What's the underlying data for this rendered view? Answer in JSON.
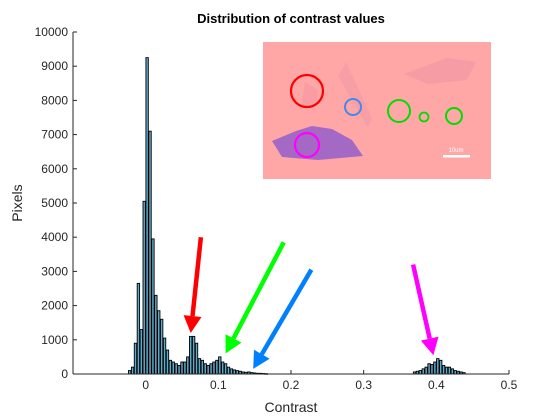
{
  "chart_data": {
    "type": "bar",
    "title": "Distribution of contrast values",
    "xlabel": "Contrast",
    "ylabel": "Pixels",
    "xlim": [
      -0.1,
      0.5
    ],
    "ylim": [
      0,
      10000
    ],
    "xticks": [
      0,
      0.1,
      0.2,
      0.3,
      0.4,
      0.5
    ],
    "xtick_labels": [
      "0",
      "0.1",
      "0.2",
      "0.3",
      "0.4",
      "0.5"
    ],
    "yticks": [
      0,
      1000,
      2000,
      3000,
      4000,
      5000,
      6000,
      7000,
      8000,
      9000,
      10000
    ],
    "ytick_labels": [
      "0",
      "1000",
      "2000",
      "3000",
      "4000",
      "5000",
      "6000",
      "7000",
      "8000",
      "9000",
      "10000"
    ],
    "grid": false,
    "bar_color": "#5fa9c9",
    "edge_color": "#000000",
    "bins": [
      {
        "x": -0.022,
        "y": 100
      },
      {
        "x": -0.018,
        "y": 200
      },
      {
        "x": -0.014,
        "y": 900
      },
      {
        "x": -0.01,
        "y": 2650
      },
      {
        "x": -0.006,
        "y": 1300
      },
      {
        "x": -0.002,
        "y": 5050
      },
      {
        "x": 0.002,
        "y": 9250
      },
      {
        "x": 0.006,
        "y": 7100
      },
      {
        "x": 0.01,
        "y": 3950
      },
      {
        "x": 0.014,
        "y": 2300
      },
      {
        "x": 0.018,
        "y": 1850
      },
      {
        "x": 0.022,
        "y": 1600
      },
      {
        "x": 0.026,
        "y": 1050
      },
      {
        "x": 0.03,
        "y": 700
      },
      {
        "x": 0.034,
        "y": 400
      },
      {
        "x": 0.038,
        "y": 350
      },
      {
        "x": 0.042,
        "y": 300
      },
      {
        "x": 0.046,
        "y": 250
      },
      {
        "x": 0.05,
        "y": 350
      },
      {
        "x": 0.054,
        "y": 350
      },
      {
        "x": 0.058,
        "y": 500
      },
      {
        "x": 0.062,
        "y": 1100
      },
      {
        "x": 0.066,
        "y": 1100
      },
      {
        "x": 0.07,
        "y": 900
      },
      {
        "x": 0.074,
        "y": 450
      },
      {
        "x": 0.078,
        "y": 400
      },
      {
        "x": 0.082,
        "y": 300
      },
      {
        "x": 0.086,
        "y": 250
      },
      {
        "x": 0.09,
        "y": 300
      },
      {
        "x": 0.094,
        "y": 350
      },
      {
        "x": 0.098,
        "y": 400
      },
      {
        "x": 0.102,
        "y": 500
      },
      {
        "x": 0.106,
        "y": 350
      },
      {
        "x": 0.11,
        "y": 300
      },
      {
        "x": 0.114,
        "y": 200
      },
      {
        "x": 0.118,
        "y": 150
      },
      {
        "x": 0.122,
        "y": 120
      },
      {
        "x": 0.126,
        "y": 100
      },
      {
        "x": 0.13,
        "y": 80
      },
      {
        "x": 0.134,
        "y": 60
      },
      {
        "x": 0.138,
        "y": 50
      },
      {
        "x": 0.142,
        "y": 60
      },
      {
        "x": 0.146,
        "y": 40
      },
      {
        "x": 0.15,
        "y": 30
      },
      {
        "x": 0.154,
        "y": 20
      },
      {
        "x": 0.158,
        "y": 20
      },
      {
        "x": 0.162,
        "y": 15
      },
      {
        "x": 0.166,
        "y": 10
      },
      {
        "x": 0.37,
        "y": 60
      },
      {
        "x": 0.374,
        "y": 80
      },
      {
        "x": 0.378,
        "y": 100
      },
      {
        "x": 0.382,
        "y": 150
      },
      {
        "x": 0.386,
        "y": 200
      },
      {
        "x": 0.39,
        "y": 300
      },
      {
        "x": 0.394,
        "y": 280
      },
      {
        "x": 0.398,
        "y": 350
      },
      {
        "x": 0.402,
        "y": 450
      },
      {
        "x": 0.406,
        "y": 400
      },
      {
        "x": 0.41,
        "y": 250
      },
      {
        "x": 0.414,
        "y": 200
      },
      {
        "x": 0.418,
        "y": 200
      },
      {
        "x": 0.422,
        "y": 150
      },
      {
        "x": 0.426,
        "y": 100
      },
      {
        "x": 0.43,
        "y": 80
      },
      {
        "x": 0.434,
        "y": 60
      },
      {
        "x": 0.438,
        "y": 40
      }
    ],
    "arrows": [
      {
        "color": "#ff0000",
        "from": [
          0.076,
          4000
        ],
        "to": [
          0.062,
          1200
        ]
      },
      {
        "color": "#00ff00",
        "from": [
          0.19,
          3850
        ],
        "to": [
          0.11,
          600
        ]
      },
      {
        "color": "#0080ff",
        "from": [
          0.228,
          3050
        ],
        "to": [
          0.148,
          150
        ]
      },
      {
        "color": "#ff00ff",
        "from": [
          0.368,
          3200
        ],
        "to": [
          0.396,
          550
        ]
      }
    ],
    "inset": {
      "description_color_bg": "#ffa7a7",
      "scale_bar_label": "10um",
      "circle_colors": [
        "#ff0000",
        "#4a86e8",
        "#00dd00",
        "#00dd00",
        "#00dd00",
        "#ff00ff"
      ]
    }
  }
}
